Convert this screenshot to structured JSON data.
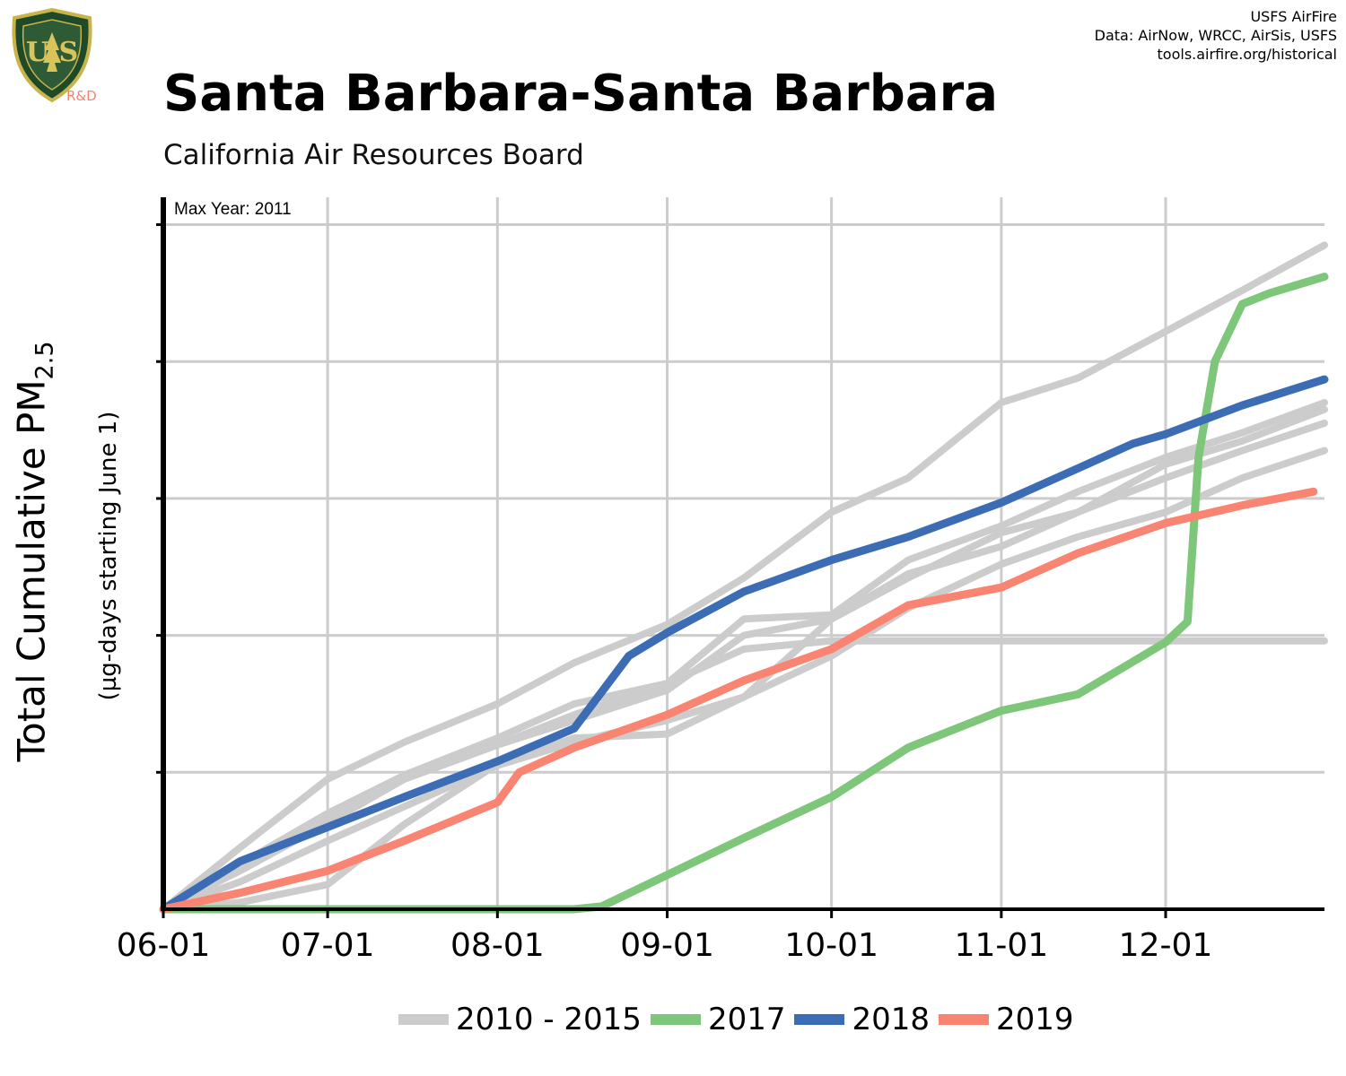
{
  "header": {
    "title": "Santa Barbara-Santa Barbara",
    "subtitle": "California Air Resources Board",
    "credits": [
      "USFS AirFire",
      "Data: AirNow, WRCC, AirSis, USFS",
      "tools.airfire.org/historical"
    ],
    "logo_text": "R&D",
    "logo_icon": "forest-service-shield-icon"
  },
  "axes": {
    "ylabel_main": "Total Cumulative PM",
    "ylabel_sub_script": "2.5",
    "ylabel_units": "(µg-days starting June 1)",
    "annotation": "Max Year: 2011"
  },
  "legend": [
    {
      "label": "2010 - 2015",
      "color": "#cccccc"
    },
    {
      "label": "2017",
      "color": "#7dc67a"
    },
    {
      "label": "2018",
      "color": "#3c6db4"
    },
    {
      "label": "2019",
      "color": "#f98472"
    }
  ],
  "chart_data": {
    "type": "line",
    "x_unit": "date (MM-DD)",
    "xlim": [
      "06-01",
      "12-30"
    ],
    "ylim": [
      0,
      5.2
    ],
    "x_ticks": [
      "06-01",
      "07-01",
      "08-01",
      "09-01",
      "10-01",
      "11-01",
      "12-01"
    ],
    "y_ticks": [
      0,
      1,
      2,
      3,
      4,
      5
    ],
    "y_tick_labels_shown": false,
    "grid": true,
    "legend_position": "bottom",
    "series": [
      {
        "name": "2010 - 2015",
        "color": "#cccccc",
        "x": [
          "06-01",
          "06-15",
          "07-01",
          "07-15",
          "08-01",
          "08-15",
          "09-01",
          "09-15",
          "10-01",
          "10-15",
          "11-01",
          "11-15",
          "12-01",
          "12-15",
          "12-30"
        ],
        "y": [
          0,
          0.45,
          0.95,
          1.22,
          1.5,
          1.8,
          2.08,
          2.42,
          2.9,
          3.15,
          3.7,
          3.88,
          4.22,
          4.52,
          4.85
        ]
      },
      {
        "name": "2010 - 2015",
        "color": "#cccccc",
        "x": [
          "06-01",
          "06-15",
          "07-01",
          "07-15",
          "08-01",
          "08-15",
          "09-01",
          "09-15",
          "10-01",
          "10-15",
          "11-01",
          "11-15",
          "12-01",
          "12-15",
          "12-30"
        ],
        "y": [
          0,
          0.33,
          0.7,
          0.98,
          1.25,
          1.5,
          1.65,
          2.12,
          2.15,
          2.55,
          2.8,
          3.05,
          3.3,
          3.48,
          3.7
        ]
      },
      {
        "name": "2010 - 2015",
        "color": "#cccccc",
        "x": [
          "06-01",
          "06-15",
          "07-01",
          "07-15",
          "08-01",
          "08-15",
          "09-01",
          "09-15",
          "10-01",
          "10-15",
          "11-01",
          "11-15",
          "12-01",
          "12-15",
          "12-30"
        ],
        "y": [
          0,
          0.28,
          0.63,
          0.95,
          1.2,
          1.38,
          1.6,
          2.0,
          2.12,
          2.45,
          2.65,
          2.9,
          3.15,
          3.35,
          3.55
        ]
      },
      {
        "name": "2010 - 2015",
        "color": "#cccccc",
        "x": [
          "06-01",
          "06-15",
          "07-01",
          "07-15",
          "08-01",
          "08-15",
          "09-01",
          "09-15",
          "10-01",
          "10-15",
          "11-01",
          "11-15",
          "12-01",
          "12-15",
          "12-30"
        ],
        "y": [
          0,
          0.05,
          0.18,
          0.62,
          1.06,
          1.25,
          1.28,
          1.55,
          2.12,
          2.42,
          2.75,
          2.9,
          3.25,
          3.42,
          3.65
        ]
      },
      {
        "name": "2010 - 2015",
        "color": "#cccccc",
        "x": [
          "06-01",
          "06-15",
          "07-01",
          "07-15",
          "08-01",
          "08-15",
          "09-01",
          "09-15",
          "10-01",
          "10-15",
          "11-01",
          "11-15",
          "12-01",
          "12-15",
          "12-30"
        ],
        "y": [
          0,
          0.2,
          0.5,
          0.75,
          1.05,
          1.22,
          1.38,
          1.55,
          1.85,
          2.2,
          2.52,
          2.72,
          2.9,
          3.15,
          3.35
        ]
      },
      {
        "name": "2010 - 2015",
        "color": "#cccccc",
        "x": [
          "06-01",
          "06-15",
          "07-01",
          "07-15",
          "08-01",
          "08-15",
          "09-01",
          "09-15",
          "10-01",
          "10-15",
          "11-01",
          "11-15",
          "12-01",
          "12-15",
          "12-30"
        ],
        "y": [
          0,
          0.32,
          0.68,
          0.95,
          1.2,
          1.42,
          1.65,
          1.9,
          1.96,
          1.96,
          1.96,
          1.96,
          1.96,
          1.96,
          1.96
        ]
      },
      {
        "name": "2017",
        "color": "#7dc67a",
        "x": [
          "06-01",
          "07-15",
          "08-15",
          "08-20",
          "09-01",
          "09-15",
          "10-01",
          "10-15",
          "11-01",
          "11-15",
          "12-01",
          "12-05",
          "12-07",
          "12-10",
          "12-15",
          "12-20",
          "12-30"
        ],
        "y": [
          0,
          0,
          0,
          0.02,
          0.25,
          0.52,
          0.82,
          1.18,
          1.45,
          1.57,
          1.95,
          2.1,
          3.3,
          4.0,
          4.42,
          4.5,
          4.62
        ]
      },
      {
        "name": "2018",
        "color": "#3c6db4",
        "x": [
          "06-01",
          "06-15",
          "07-01",
          "07-15",
          "08-01",
          "08-15",
          "08-25",
          "09-01",
          "09-15",
          "10-01",
          "10-15",
          "11-01",
          "11-15",
          "11-25",
          "12-01",
          "12-15",
          "12-30"
        ],
        "y": [
          0,
          0.35,
          0.6,
          0.82,
          1.08,
          1.32,
          1.85,
          2.02,
          2.32,
          2.55,
          2.72,
          2.97,
          3.22,
          3.4,
          3.47,
          3.68,
          3.87
        ]
      },
      {
        "name": "2019",
        "color": "#f98472",
        "x": [
          "06-01",
          "06-15",
          "07-01",
          "07-15",
          "08-01",
          "08-05",
          "08-15",
          "09-01",
          "09-15",
          "10-01",
          "10-15",
          "11-01",
          "11-15",
          "12-01",
          "12-15",
          "12-28"
        ],
        "y": [
          0,
          0.12,
          0.28,
          0.5,
          0.78,
          1.0,
          1.18,
          1.42,
          1.67,
          1.9,
          2.22,
          2.35,
          2.6,
          2.82,
          2.95,
          3.05
        ]
      }
    ]
  }
}
